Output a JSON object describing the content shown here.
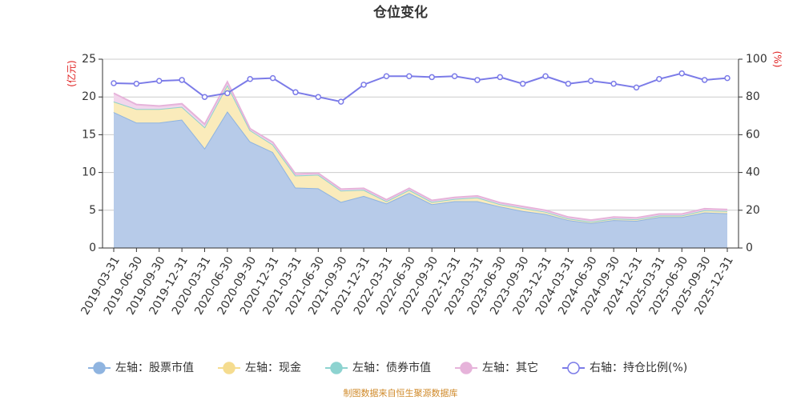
{
  "chart_data": {
    "type": "stacked-area-line",
    "title": "仓位变化",
    "y_label": "(亿元)",
    "y2_label": "(%)",
    "categories": [
      "2019-03-31",
      "2019-06-30",
      "2019-09-30",
      "2019-12-31",
      "2020-03-31",
      "2020-06-30",
      "2020-09-30",
      "2020-12-31",
      "2021-03-31",
      "2021-06-30",
      "2021-09-30",
      "2021-12-31",
      "2022-03-31",
      "2022-06-30",
      "2022-09-30",
      "2022-12-31",
      "2023-03-31",
      "2023-06-30",
      "2023-09-30",
      "2023-12-31",
      "2024-03-31",
      "2024-06-30",
      "2024-09-30",
      "2024-12-31",
      "2025-03-31",
      "2025-06-30",
      "2025-09-30",
      "2025-12-31"
    ],
    "series": [
      {
        "name": "左轴：股票市值",
        "color": "#8fb4e0",
        "fill": "#b7cbe9",
        "values": [
          18.0,
          16.6,
          16.6,
          17.0,
          13.2,
          18.1,
          14.1,
          12.7,
          8.0,
          7.9,
          6.1,
          6.9,
          5.9,
          7.3,
          5.8,
          6.2,
          6.2,
          5.5,
          4.9,
          4.5,
          3.7,
          3.3,
          3.7,
          3.6,
          4.1,
          4.1,
          4.7,
          4.6
        ]
      },
      {
        "name": "左轴：现金",
        "color": "#f5dc8f",
        "fill": "#faebbb",
        "values": [
          1.4,
          1.8,
          1.8,
          1.7,
          2.8,
          3.5,
          1.5,
          1.0,
          1.6,
          1.8,
          1.5,
          0.8,
          0.3,
          0.4,
          0.3,
          0.3,
          0.5,
          0.3,
          0.4,
          0.3,
          0.2,
          0.2,
          0.2,
          0.2,
          0.2,
          0.2,
          0.3,
          0.3
        ]
      },
      {
        "name": "左轴：债券市值",
        "color": "#8dd3d0",
        "fill": "#b9e5e3",
        "values": [
          0,
          0,
          0,
          0,
          0,
          0,
          0,
          0,
          0,
          0,
          0,
          0,
          0,
          0,
          0,
          0,
          0,
          0,
          0,
          0,
          0,
          0,
          0,
          0,
          0,
          0,
          0,
          0
        ]
      },
      {
        "name": "左轴：其它",
        "color": "#e6b3da",
        "fill": "#f2d6ec",
        "values": [
          1.1,
          0.6,
          0.4,
          0.4,
          0.4,
          0.4,
          0.2,
          0.3,
          0.2,
          0.2,
          0.2,
          0.2,
          0.2,
          0.2,
          0.2,
          0.2,
          0.2,
          0.2,
          0.2,
          0.2,
          0.2,
          0.2,
          0.2,
          0.2,
          0.2,
          0.2,
          0.2,
          0.2
        ]
      },
      {
        "name": "右轴：持仓比例(%)",
        "color": "#7b7be8",
        "axis": "y2",
        "values": [
          87.3,
          87,
          88.5,
          89,
          80,
          82,
          89.5,
          90,
          82.5,
          80,
          77.5,
          86.5,
          91,
          91,
          90.5,
          91,
          89,
          90.5,
          87,
          91,
          87,
          88.5,
          87,
          85,
          89.5,
          92.5,
          89,
          90
        ]
      }
    ],
    "ylim": [
      0,
      25
    ],
    "yticks": [
      0,
      5,
      10,
      15,
      20,
      25
    ],
    "y2lim": [
      0,
      100
    ],
    "y2ticks": [
      0,
      20,
      40,
      60,
      80,
      100
    ],
    "grid": true,
    "legend": "bottom",
    "source": "制图数据来自恒生聚源数据库"
  }
}
